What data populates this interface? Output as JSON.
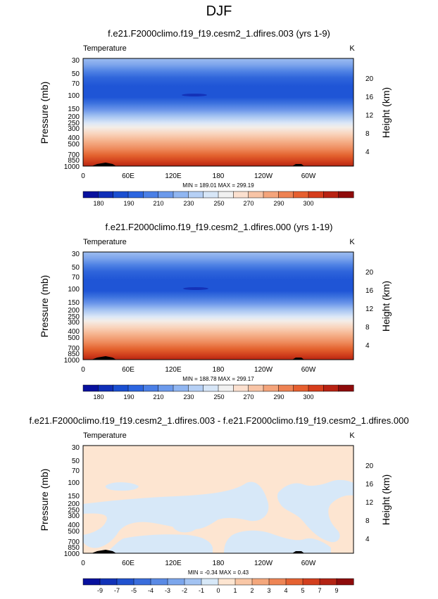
{
  "page": {
    "title": "DJF"
  },
  "chart_data": [
    {
      "type": "heatmap",
      "title": "f.e21.F2000climo.f19_f19.cesm2_1.dfires.003 (yrs 1-9)",
      "variable_label": "Temperature",
      "units_label": "K",
      "ylabel": "Pressure (mb)",
      "y2label": "Height (km)",
      "x_ticks": [
        "0",
        "60E",
        "120E",
        "180",
        "120W",
        "60W"
      ],
      "y_ticks": [
        "30",
        "50",
        "70",
        "100",
        "150",
        "200",
        "250",
        "300",
        "400",
        "500",
        "700",
        "850",
        "1000"
      ],
      "y2_ticks": [
        "20",
        "16",
        "12",
        "8",
        "4"
      ],
      "stats": "MIN = 189.01   MAX = 299.19",
      "colorbar_labels": [
        "180",
        "190",
        "210",
        "230",
        "250",
        "270",
        "290",
        "300"
      ],
      "colorbar_colors": [
        "#08119e",
        "#0f2fb8",
        "#1a4fd1",
        "#2c65e0",
        "#4a7fe6",
        "#6c9aec",
        "#90b6f1",
        "#b6d0f5",
        "#d7e6f7",
        "#f1f1f1",
        "#fbe0cf",
        "#f8c4a6",
        "#f4a47b",
        "#ee8253",
        "#e65f2f",
        "#d63d1c",
        "#b82212",
        "#8e0b0b"
      ]
    },
    {
      "type": "heatmap",
      "title": "f.e21.F2000climo.f19_f19.cesm2_1.dfires.000 (yrs 1-19)",
      "variable_label": "Temperature",
      "units_label": "K",
      "ylabel": "Pressure (mb)",
      "y2label": "Height (km)",
      "x_ticks": [
        "0",
        "60E",
        "120E",
        "180",
        "120W",
        "60W"
      ],
      "y_ticks": [
        "30",
        "50",
        "70",
        "100",
        "150",
        "200",
        "250",
        "300",
        "400",
        "500",
        "700",
        "850",
        "1000"
      ],
      "y2_ticks": [
        "20",
        "16",
        "12",
        "8",
        "4"
      ],
      "stats": "MIN = 188.78   MAX = 299.17",
      "colorbar_labels": [
        "180",
        "190",
        "210",
        "230",
        "250",
        "270",
        "290",
        "300"
      ],
      "colorbar_colors": [
        "#08119e",
        "#0f2fb8",
        "#1a4fd1",
        "#2c65e0",
        "#4a7fe6",
        "#6c9aec",
        "#90b6f1",
        "#b6d0f5",
        "#d7e6f7",
        "#f1f1f1",
        "#fbe0cf",
        "#f8c4a6",
        "#f4a47b",
        "#ee8253",
        "#e65f2f",
        "#d63d1c",
        "#b82212",
        "#8e0b0b"
      ]
    },
    {
      "type": "heatmap",
      "title": "f.e21.F2000climo.f19_f19.cesm2_1.dfires.003 - f.e21.F2000climo.f19_f19.cesm2_1.dfires.000",
      "variable_label": "Temperature",
      "units_label": "K",
      "ylabel": "Pressure (mb)",
      "y2label": "Height (km)",
      "x_ticks": [
        "0",
        "60E",
        "120E",
        "180",
        "120W",
        "60W"
      ],
      "y_ticks": [
        "30",
        "50",
        "70",
        "100",
        "150",
        "200",
        "250",
        "300",
        "400",
        "500",
        "700",
        "850",
        "1000"
      ],
      "y2_ticks": [
        "20",
        "16",
        "12",
        "8",
        "4"
      ],
      "stats": "MIN =  -0.34   MAX =   0.43",
      "colorbar_labels": [
        "-9",
        "-7",
        "-5",
        "-4",
        "-3",
        "-2",
        "-1",
        "0",
        "1",
        "2",
        "3",
        "4",
        "5",
        "7",
        "9"
      ],
      "colorbar_colors": [
        "#08119e",
        "#1233b8",
        "#2152cf",
        "#3a6ddc",
        "#5a8ae5",
        "#7ca6ec",
        "#a3c3f2",
        "#d7e8f8",
        "#fde5d1",
        "#f9c7a6",
        "#f4a77c",
        "#ee8555",
        "#e56232",
        "#d33f1e",
        "#b32313",
        "#8e0b0b"
      ]
    }
  ]
}
